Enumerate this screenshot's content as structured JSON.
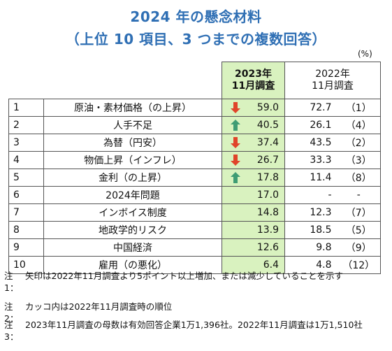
{
  "title_line1": "2024 年の懸念材料",
  "title_line2": "（上位 10 項目、3 つまでの複数回答）",
  "unit": "(%)",
  "header": {
    "col2023_line1": "2023年",
    "col2023_line2": "11月調査",
    "col2022_line1": "2022年",
    "col2022_line2": "11月調査"
  },
  "colors": {
    "up": "#3f9c74",
    "down": "#e0442a",
    "highlight": "#d9f2bf",
    "title": "#2f6fb4"
  },
  "rows": [
    {
      "rank": "1",
      "item": "原油・素材価格（の上昇）",
      "arrow": "down",
      "v2023": "59.0",
      "v2022": "72.7",
      "r2022": "（1）"
    },
    {
      "rank": "2",
      "item": "人手不足",
      "arrow": "up",
      "v2023": "40.5",
      "v2022": "26.1",
      "r2022": "（4）"
    },
    {
      "rank": "3",
      "item": "為替（円安）",
      "arrow": "down",
      "v2023": "37.4",
      "v2022": "43.5",
      "r2022": "（2）"
    },
    {
      "rank": "4",
      "item": "物価上昇（インフレ）",
      "arrow": "down",
      "v2023": "26.7",
      "v2022": "33.3",
      "r2022": "（3）"
    },
    {
      "rank": "5",
      "item": "金利（の上昇）",
      "arrow": "up",
      "v2023": "17.8",
      "v2022": "11.4",
      "r2022": "（8）"
    },
    {
      "rank": "6",
      "item": "2024年問題",
      "arrow": "",
      "v2023": "17.0",
      "v2022": "-",
      "r2022": "-"
    },
    {
      "rank": "7",
      "item": "インボイス制度",
      "arrow": "",
      "v2023": "14.8",
      "v2022": "12.3",
      "r2022": "（7）"
    },
    {
      "rank": "8",
      "item": "地政学的リスク",
      "arrow": "",
      "v2023": "13.9",
      "v2022": "18.5",
      "r2022": "（5）"
    },
    {
      "rank": "9",
      "item": "中国経済",
      "arrow": "",
      "v2023": "12.6",
      "v2022": "9.8",
      "r2022": "（9）"
    },
    {
      "rank": "10",
      "item": "雇用（の悪化）",
      "arrow": "",
      "v2023": "6.4",
      "v2022": "4.8",
      "r2022": "（12）"
    }
  ],
  "notes": [
    {
      "label": "注1：",
      "text": "矢印は2022年11月調査より5ポイント以上増加、または減少していることを示す"
    },
    {
      "label": "注2：",
      "text": "カッコ内は2022年11月調査時の順位"
    },
    {
      "label": "注3：",
      "text": "2023年11月調査の母数は有効回答企業1万1,396社。2022年11月調査は1万1,510社"
    }
  ]
}
